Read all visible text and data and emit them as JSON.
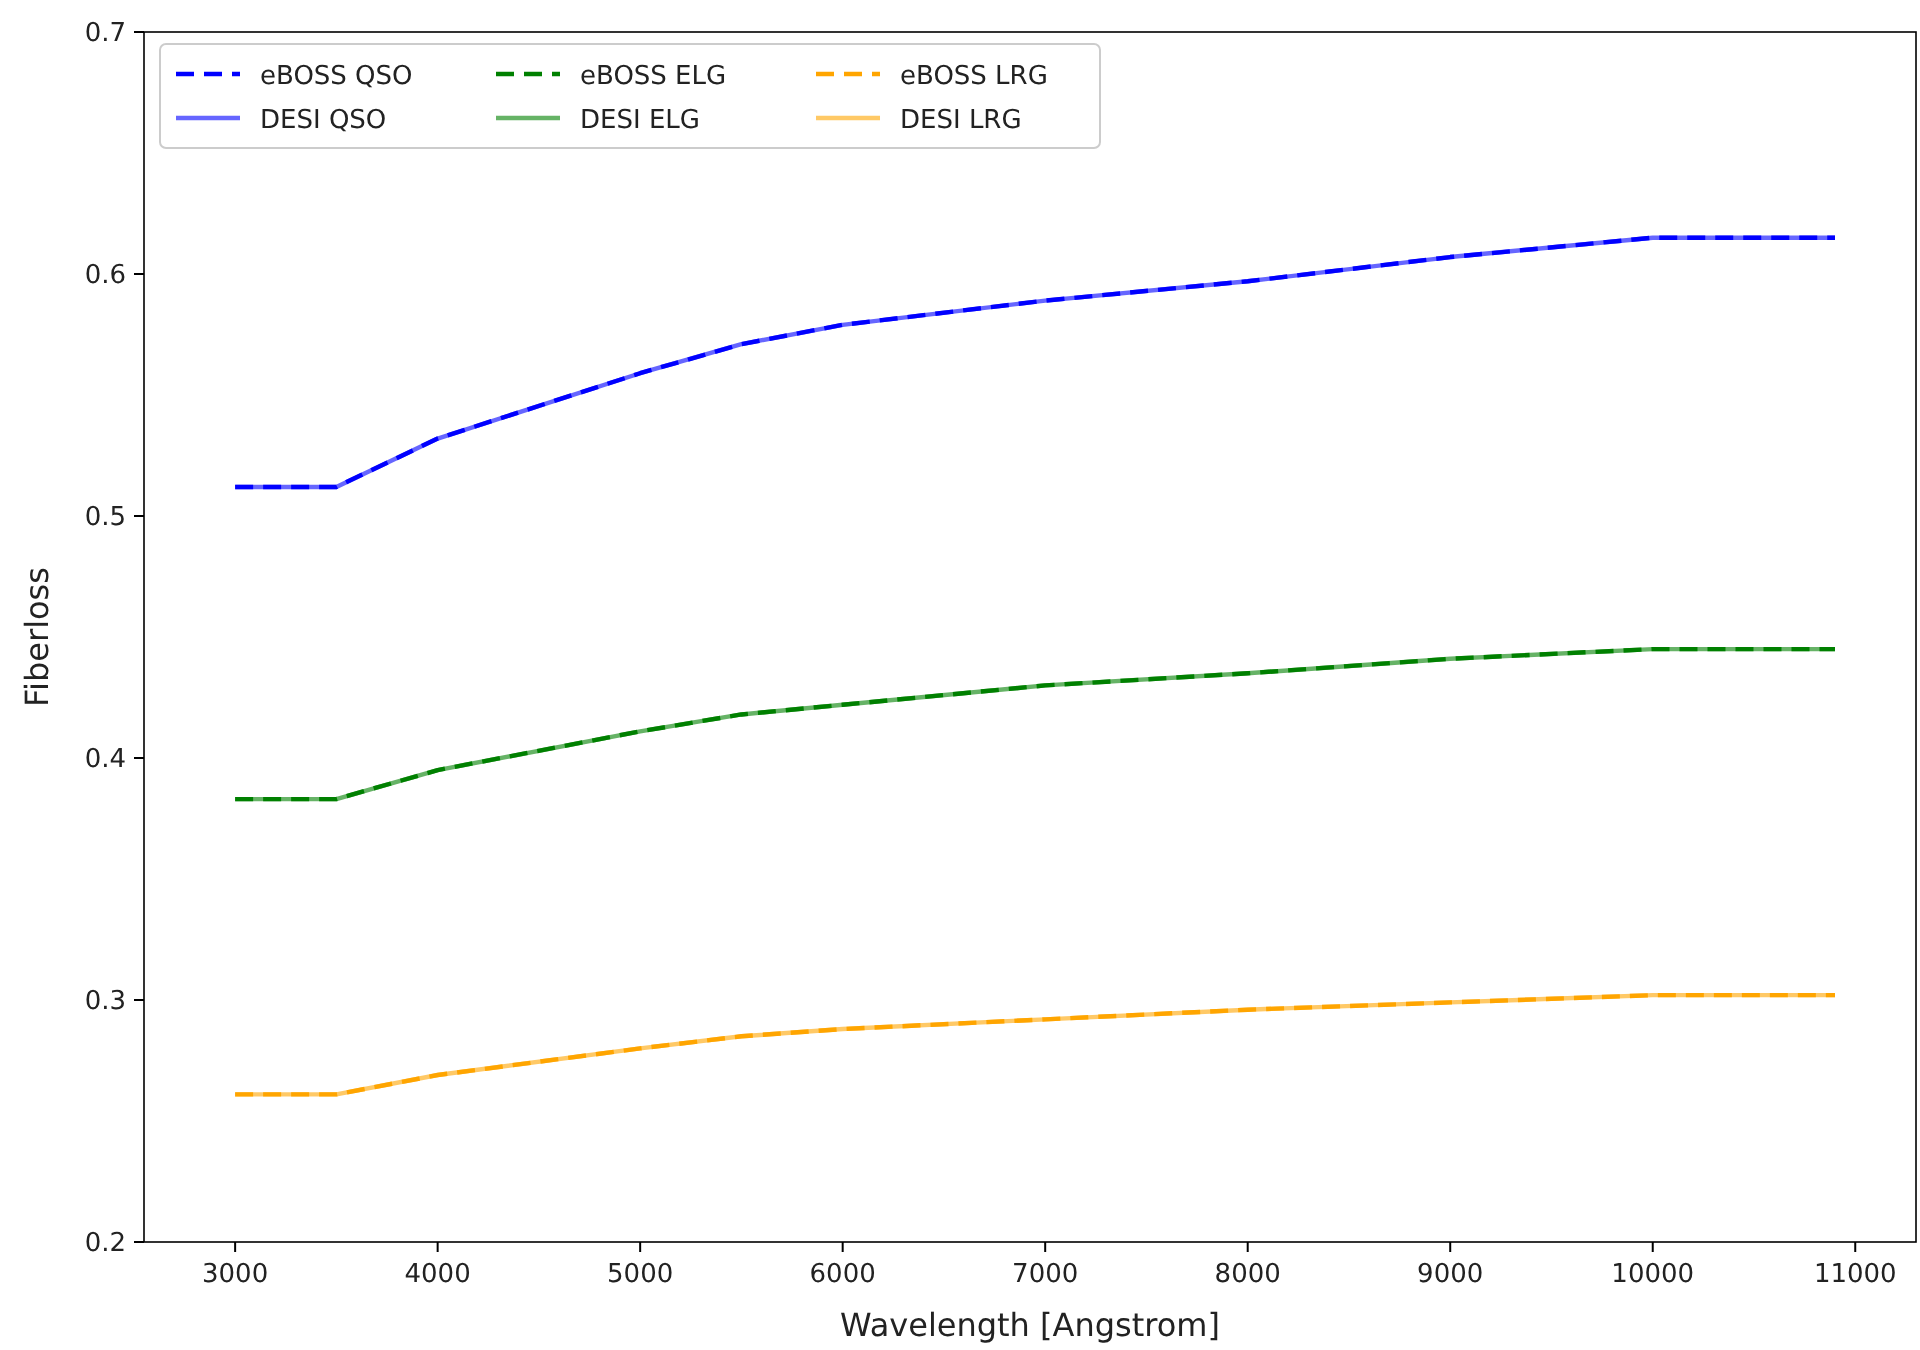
{
  "chart_data": {
    "type": "line",
    "xlabel": "Wavelength [Angstrom]",
    "ylabel": "Fiberloss",
    "xlim": [
      2550,
      11300
    ],
    "ylim": [
      0.2,
      0.7
    ],
    "xticks": [
      3000,
      4000,
      5000,
      6000,
      7000,
      8000,
      9000,
      10000,
      11000
    ],
    "yticks": [
      0.2,
      0.3,
      0.4,
      0.5,
      0.6,
      0.7
    ],
    "x": [
      3000,
      3500,
      4000,
      5000,
      5500,
      6000,
      7000,
      8000,
      9000,
      10000,
      10900
    ],
    "legend": "top left",
    "grid": false,
    "marker": "none",
    "series": [
      {
        "name": "eBOSS QSO",
        "color": "#0000ff",
        "line_style": "dashed",
        "values": [
          0.512,
          0.512,
          0.532,
          0.559,
          0.571,
          0.579,
          0.589,
          0.597,
          0.607,
          0.615,
          0.615
        ]
      },
      {
        "name": "DESI QSO",
        "color": "#6666ff",
        "line_style": "solid",
        "values": [
          0.512,
          0.512,
          0.532,
          0.559,
          0.571,
          0.579,
          0.589,
          0.597,
          0.607,
          0.615,
          0.615
        ]
      },
      {
        "name": "eBOSS ELG",
        "color": "#008000",
        "line_style": "dashed",
        "values": [
          0.383,
          0.383,
          0.395,
          0.411,
          0.418,
          0.422,
          0.43,
          0.435,
          0.441,
          0.445,
          0.445
        ]
      },
      {
        "name": "DESI ELG",
        "color": "#66b366",
        "line_style": "solid",
        "values": [
          0.383,
          0.383,
          0.395,
          0.411,
          0.418,
          0.422,
          0.43,
          0.435,
          0.441,
          0.445,
          0.445
        ]
      },
      {
        "name": "eBOSS LRG",
        "color": "#ffa500",
        "line_style": "dashed",
        "values": [
          0.261,
          0.261,
          0.269,
          0.28,
          0.285,
          0.288,
          0.292,
          0.296,
          0.299,
          0.302,
          0.302
        ]
      },
      {
        "name": "DESI LRG",
        "color": "#ffc966",
        "line_style": "solid",
        "values": [
          0.261,
          0.261,
          0.269,
          0.28,
          0.285,
          0.288,
          0.292,
          0.296,
          0.299,
          0.302,
          0.302
        ]
      }
    ]
  }
}
